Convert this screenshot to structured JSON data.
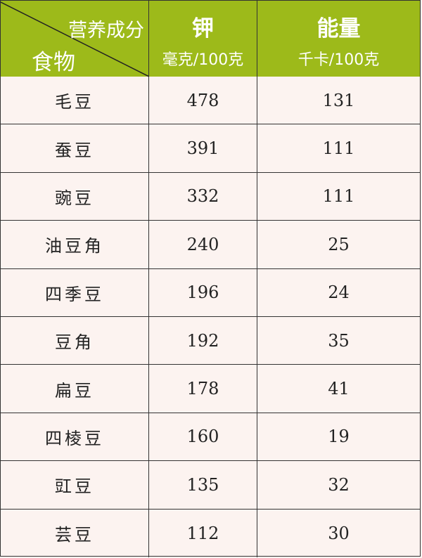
{
  "header": {
    "corner_top": "营养成分",
    "corner_bottom": "食物",
    "potassium": {
      "label": "钾",
      "unit": "毫克/100克"
    },
    "energy": {
      "label": "能量",
      "unit": "千卡/100克"
    }
  },
  "colors": {
    "header_bg": "#9dba1a",
    "body_bg": "#fcf3f0",
    "header_text": "#ffffff"
  },
  "rows": [
    {
      "food": "毛豆",
      "potassium": "478",
      "energy": "131"
    },
    {
      "food": "蚕豆",
      "potassium": "391",
      "energy": "111"
    },
    {
      "food": "豌豆",
      "potassium": "332",
      "energy": "111"
    },
    {
      "food": "油豆角",
      "potassium": "240",
      "energy": "25"
    },
    {
      "food": "四季豆",
      "potassium": "196",
      "energy": "24"
    },
    {
      "food": "豆角",
      "potassium": "192",
      "energy": "35"
    },
    {
      "food": "扁豆",
      "potassium": "178",
      "energy": "41"
    },
    {
      "food": "四棱豆",
      "potassium": "160",
      "energy": "19"
    },
    {
      "food": "豇豆",
      "potassium": "135",
      "energy": "32"
    },
    {
      "food": "芸豆",
      "potassium": "112",
      "energy": "30"
    }
  ]
}
